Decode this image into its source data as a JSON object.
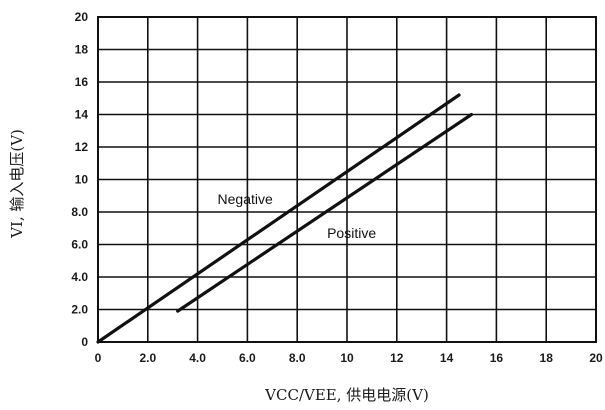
{
  "chart_data": {
    "type": "line",
    "xlabel": "VCC/VEE, 供电电源(V)",
    "ylabel": "VI, 输入电压(V)",
    "xlim": [
      0,
      20
    ],
    "ylim": [
      0,
      20
    ],
    "x_ticks": [
      0,
      2,
      4,
      6,
      8,
      10,
      12,
      14,
      16,
      18,
      20
    ],
    "x_tick_labels": [
      "0",
      "2.0",
      "4.0",
      "6.0",
      "8.0",
      "10",
      "12",
      "14",
      "16",
      "18",
      "20"
    ],
    "y_ticks": [
      0,
      2,
      4,
      6,
      8,
      10,
      12,
      14,
      16,
      18,
      20
    ],
    "y_tick_labels": [
      "0",
      "2.0",
      "4.0",
      "6.0",
      "8.0",
      "10",
      "12",
      "14",
      "16",
      "18",
      "20"
    ],
    "grid": true,
    "series": [
      {
        "name": "Negative",
        "color": "#111111",
        "x": [
          0,
          14.5
        ],
        "y": [
          0,
          15.2
        ]
      },
      {
        "name": "Positive",
        "color": "#111111",
        "x": [
          3.2,
          15
        ],
        "y": [
          1.9,
          14.0
        ]
      }
    ],
    "annotations": [
      {
        "text": "Negative",
        "series": "Negative",
        "x": 4.8,
        "y": 8.5
      },
      {
        "text": "Positive",
        "series": "Positive",
        "x": 9.2,
        "y": 6.4
      }
    ]
  }
}
